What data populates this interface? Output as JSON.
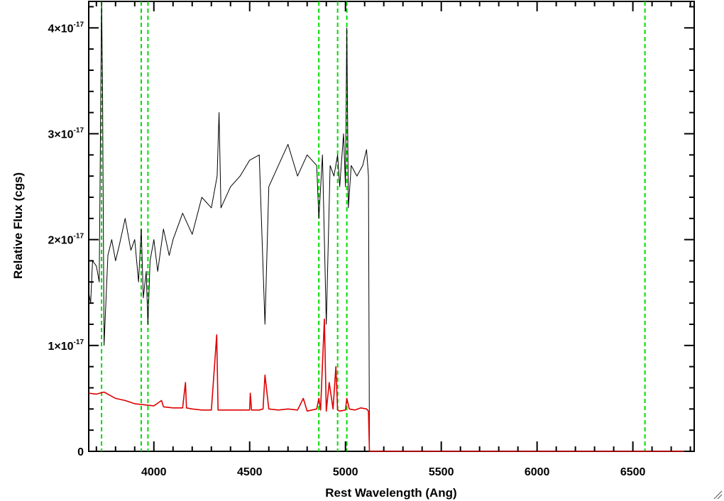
{
  "chart_data": {
    "type": "line",
    "title": "",
    "xlabel": "Rest Wavelength (Ang)",
    "ylabel": "Relative Flux (cgs)",
    "xlim": [
      3660,
      6820
    ],
    "ylim": [
      0,
      4.25e-17
    ],
    "x_ticks": [
      4000,
      4500,
      5000,
      5500,
      6000,
      6500
    ],
    "x_tick_labels": [
      "4000",
      "4500",
      "5000",
      "5500",
      "6000",
      "6500"
    ],
    "y_ticks": [
      0,
      1e-17,
      2e-17,
      3e-17,
      4e-17
    ],
    "y_tick_labels": [
      {
        "mantissa": "0",
        "exp": ""
      },
      {
        "mantissa": "1×10",
        "exp": "-17"
      },
      {
        "mantissa": "2×10",
        "exp": "-17"
      },
      {
        "mantissa": "3×10",
        "exp": "-17"
      },
      {
        "mantissa": "4×10",
        "exp": "-17"
      }
    ],
    "grid": false,
    "legend": "none",
    "colors": {
      "observed": "#000000",
      "model": "#dd0000",
      "lines": "#00dd00"
    },
    "vertical_markers": [
      3727,
      3934,
      3969,
      4861,
      4959,
      5007,
      6563
    ],
    "series": [
      {
        "x": [
          3660,
          3670,
          3680,
          3700,
          3715,
          3727,
          3732,
          3740,
          3760,
          3780,
          3800,
          3820,
          3850,
          3880,
          3900,
          3920,
          3934,
          3945,
          3960,
          3969,
          3980,
          4000,
          4020,
          4050,
          4080,
          4100,
          4150,
          4200,
          4250,
          4300,
          4330,
          4340,
          4350,
          4400,
          4450,
          4500,
          4550,
          4580,
          4600,
          4650,
          4700,
          4750,
          4800,
          4850,
          4861,
          4880,
          4900,
          4920,
          4940,
          4959,
          4970,
          4990,
          5000,
          5007,
          5015,
          5030,
          5060,
          5090,
          5110,
          5120,
          5125
        ],
        "y": [
          1.5e-17,
          1.4e-17,
          1.8e-17,
          1.75e-17,
          1.6e-17,
          4.25e-17,
          3.5e-17,
          1e-17,
          1.85e-17,
          2e-17,
          1.8e-17,
          1.95e-17,
          2.2e-17,
          1.9e-17,
          2e-17,
          1.6e-17,
          2.1e-17,
          1.45e-17,
          1.7e-17,
          1.2e-17,
          1.8e-17,
          2e-17,
          1.7e-17,
          2.1e-17,
          1.85e-17,
          2e-17,
          2.25e-17,
          2.05e-17,
          2.4e-17,
          2.3e-17,
          2.6e-17,
          3.2e-17,
          2.3e-17,
          2.5e-17,
          2.6e-17,
          2.75e-17,
          2.8e-17,
          1.2e-17,
          2.5e-17,
          2.7e-17,
          2.9e-17,
          2.6e-17,
          2.8e-17,
          2.7e-17,
          2.2e-17,
          2.8e-17,
          1.2e-17,
          2.7e-17,
          2.6e-17,
          2.8e-17,
          2.5e-17,
          3e-17,
          2.5e-17,
          4e-17,
          2.3e-17,
          2.7e-17,
          2.6e-17,
          2.7e-17,
          2.85e-17,
          2.6e-17,
          0
        ]
      },
      {
        "x": [
          3660,
          3700,
          3740,
          3780,
          3800,
          3850,
          3900,
          3950,
          4000,
          4040,
          4050,
          4100,
          4150,
          4165,
          4170,
          4200,
          4250,
          4300,
          4328,
          4335,
          4345,
          4400,
          4450,
          4500,
          4503,
          4510,
          4550,
          4570,
          4580,
          4600,
          4650,
          4700,
          4750,
          4780,
          4800,
          4850,
          4861,
          4870,
          4890,
          4900,
          4915,
          4935,
          4950,
          4959,
          4970,
          5000,
          5007,
          5020,
          5050,
          5080,
          5110,
          5120,
          5125,
          5200,
          5500,
          6000,
          6500,
          6820
        ],
        "y": [
          5.5e-18,
          5.4e-18,
          5.6e-18,
          5.2e-18,
          5e-18,
          4.8e-18,
          4.5e-18,
          4.4e-18,
          4.3e-18,
          4.8e-18,
          4.2e-18,
          4.1e-18,
          4.1e-18,
          6.5e-18,
          4.1e-18,
          4e-18,
          3.9e-18,
          3.9e-18,
          1.1e-17,
          3.9e-18,
          3.9e-18,
          3.9e-18,
          3.9e-18,
          3.9e-18,
          5.5e-18,
          3.9e-18,
          3.9e-18,
          4e-18,
          7.2e-18,
          4e-18,
          3.9e-18,
          4e-18,
          3.9e-18,
          5e-18,
          3.8e-18,
          4e-18,
          5e-18,
          3.9e-18,
          1.25e-17,
          3.8e-18,
          6.5e-18,
          4e-18,
          8e-18,
          3.9e-18,
          3.8e-18,
          3.9e-18,
          5e-18,
          4e-18,
          3.9e-18,
          4.1e-18,
          4e-18,
          3.8e-18,
          0,
          0,
          0,
          0,
          0,
          0
        ]
      }
    ]
  }
}
